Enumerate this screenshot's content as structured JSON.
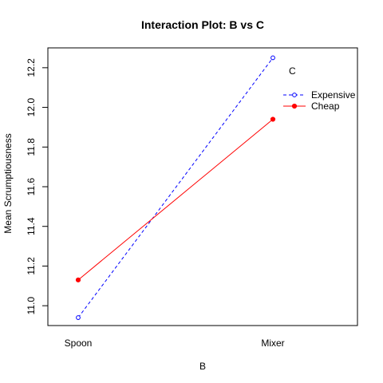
{
  "chart_data": {
    "type": "line",
    "title": "Interaction Plot: B vs C",
    "xlabel": "B",
    "ylabel": "Mean Scrumptiousness",
    "categories": [
      "Spoon",
      "Mixer"
    ],
    "ylim": [
      10.9,
      12.3
    ],
    "yticks": [
      11.0,
      11.2,
      11.4,
      11.6,
      11.8,
      12.0,
      12.2
    ],
    "grid": false,
    "legend": {
      "title": "C",
      "placement": "top-right"
    },
    "series": [
      {
        "name": "Expensive",
        "values": [
          10.94,
          12.25
        ],
        "color": "#0000ff",
        "line_style": "dashed",
        "marker": "open-circle"
      },
      {
        "name": "Cheap",
        "values": [
          11.13,
          11.94
        ],
        "color": "#ff0000",
        "line_style": "solid",
        "marker": "filled-circle"
      }
    ]
  }
}
